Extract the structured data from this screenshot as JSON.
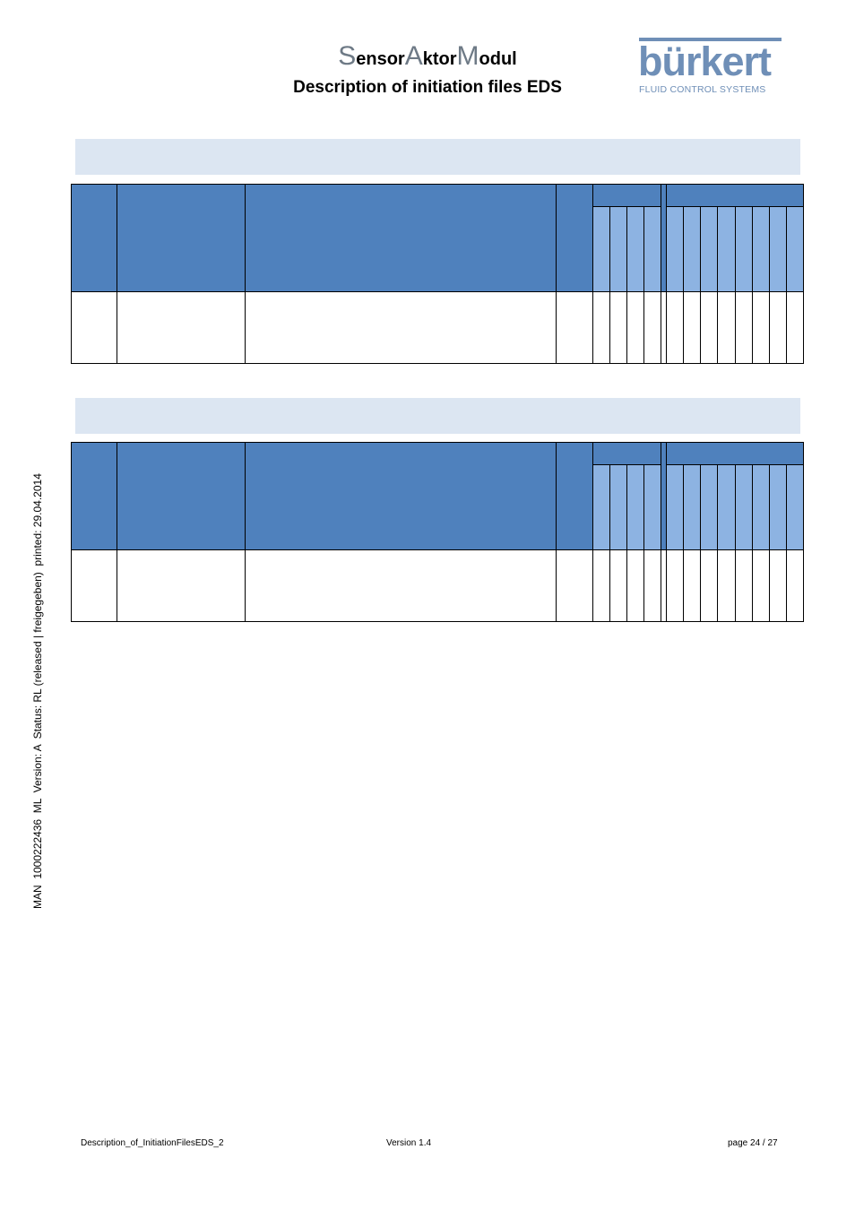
{
  "header": {
    "title_prefix_S": "S",
    "title_part1": "ensor",
    "title_prefix_A": "A",
    "title_part2": "ktor",
    "title_prefix_M": "M",
    "title_part3": "odul",
    "subtitle": "Description of initiation files EDS"
  },
  "logo": {
    "word": "bürkert",
    "tagline": "FLUID CONTROL SYSTEMS"
  },
  "side_note": "MAN  1000222436  ML  Version: A  Status: RL (released | freigegeben)  printed: 29.04.2014",
  "footer": {
    "filename": "Description_of_InitiationFilesEDS_2",
    "version": "Version 1.4",
    "page": "page 24 / 27"
  },
  "colors": {
    "header_blue": "#4f81bd",
    "subheader_blue": "#8db3e2",
    "section_bar": "#dce6f2",
    "logo_blue": "#6f8fb7"
  }
}
